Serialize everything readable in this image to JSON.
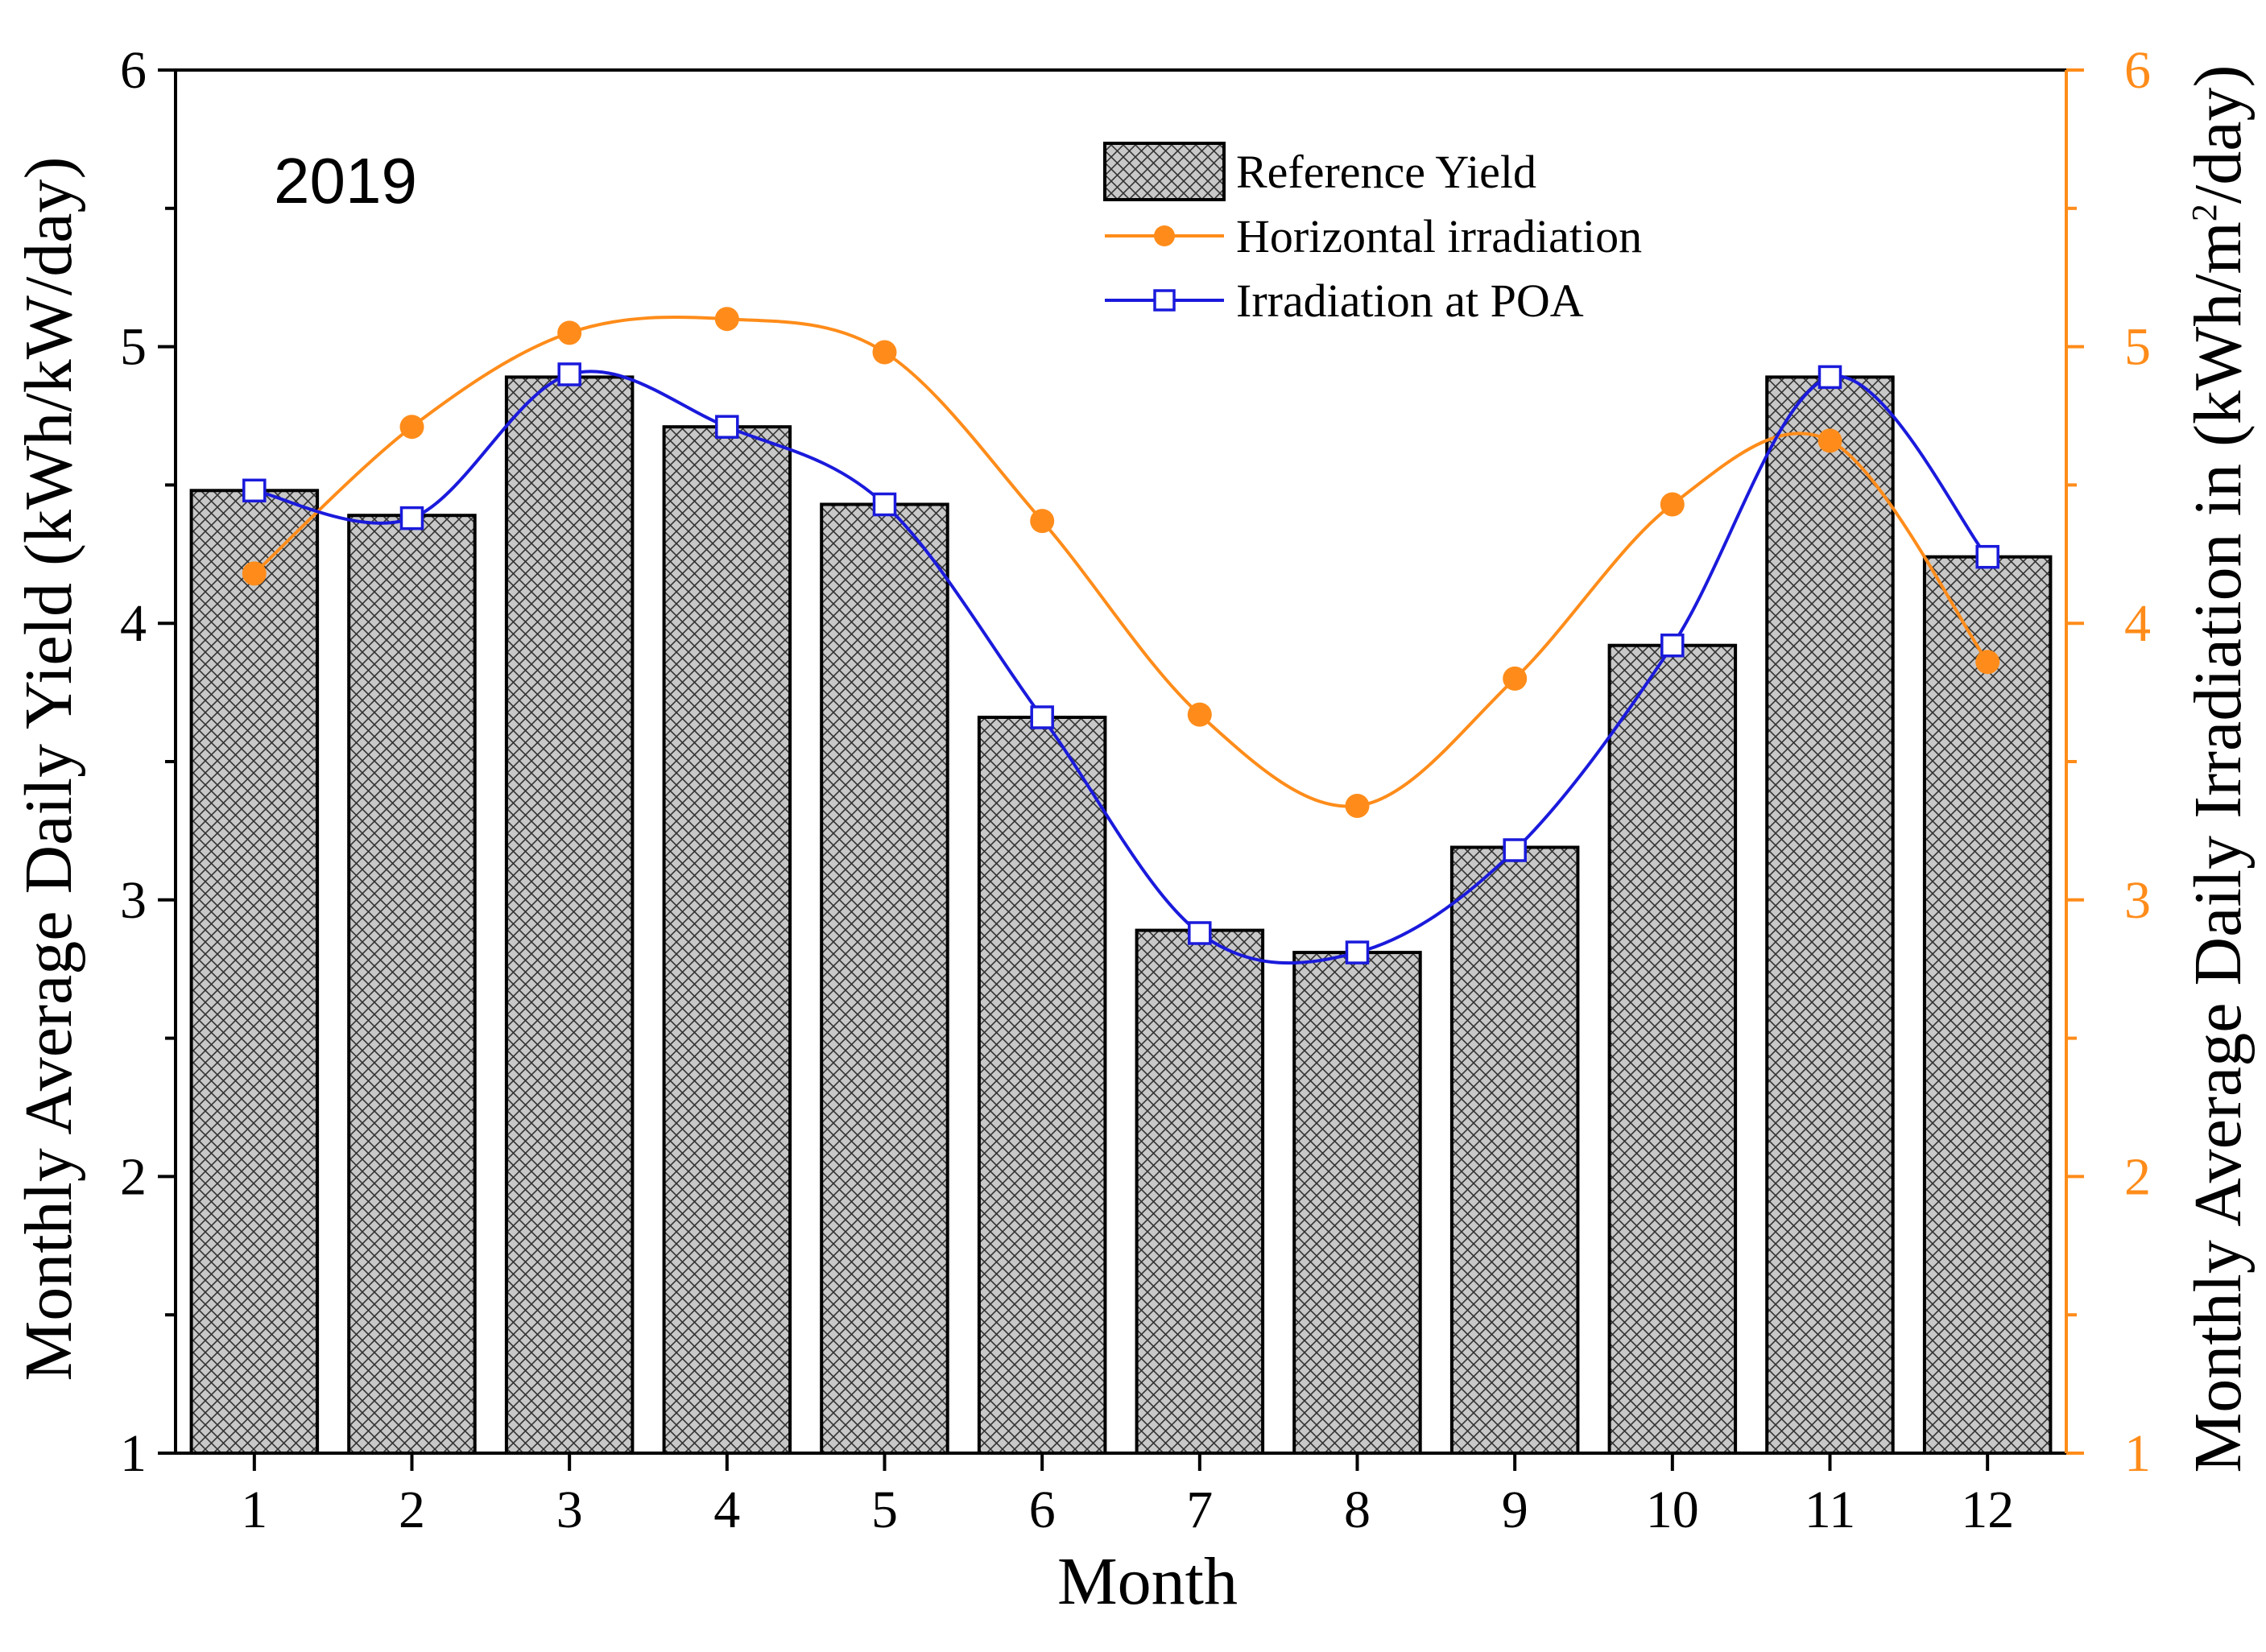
{
  "chart_data": {
    "type": "bar",
    "annotation": "2019",
    "xlabel": "Month",
    "ylabel_left": "Monthly Average Daily Yield (kWh/kW/day)",
    "ylabel_right": {
      "before": "Monthly Average Daily Irradiation in (kWh/m",
      "sup": "2",
      "after": "/day)"
    },
    "categories": [
      "1",
      "2",
      "3",
      "4",
      "5",
      "6",
      "7",
      "8",
      "9",
      "10",
      "11",
      "12"
    ],
    "ylim_left": [
      1,
      6
    ],
    "ylim_right": [
      1,
      6
    ],
    "yticks_left": [
      "1",
      "2",
      "3",
      "4",
      "5",
      "6"
    ],
    "yticks_right": [
      "1",
      "2",
      "3",
      "4",
      "5",
      "6"
    ],
    "legend_position": "top-right",
    "series": [
      {
        "name": "Reference Yield",
        "kind": "bar",
        "axis": "left",
        "color": "#c8c8c8",
        "values": [
          4.48,
          4.39,
          4.89,
          4.71,
          4.43,
          3.66,
          2.89,
          2.81,
          3.19,
          3.92,
          4.89,
          4.24
        ]
      },
      {
        "name": "Horizontal irradiation",
        "kind": "line",
        "axis": "right",
        "color": "#ff8c1a",
        "marker": "filled-circle",
        "values": [
          4.18,
          4.71,
          5.05,
          5.1,
          4.98,
          4.37,
          3.67,
          3.34,
          3.8,
          4.43,
          4.66,
          3.86
        ]
      },
      {
        "name": "Irradiation at POA",
        "kind": "line",
        "axis": "right",
        "color": "#1a1adc",
        "marker": "open-square",
        "values": [
          4.48,
          4.38,
          4.9,
          4.71,
          4.43,
          3.66,
          2.88,
          2.81,
          3.18,
          3.92,
          4.89,
          4.24
        ]
      }
    ],
    "colors": {
      "right_axis": "#ff8c1a",
      "frame": "#000000"
    }
  }
}
